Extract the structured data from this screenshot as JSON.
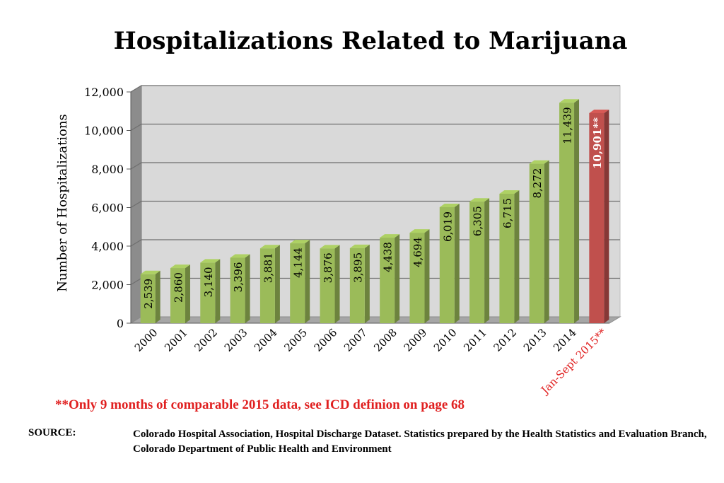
{
  "chart_data": {
    "type": "bar",
    "title": "Hospitalizations Related to Marijuana",
    "ylabel": "Number of Hospitalizations",
    "xlabel": "",
    "ylim": [
      0,
      12000
    ],
    "yticks": [
      0,
      2000,
      4000,
      6000,
      8000,
      10000,
      12000
    ],
    "ytick_labels": [
      "0",
      "2,000",
      "4,000",
      "6,000",
      "8,000",
      "10,000",
      "12,000"
    ],
    "grid": true,
    "categories": [
      "2000",
      "2001",
      "2002",
      "2003",
      "2004",
      "2005",
      "2006",
      "2007",
      "2008",
      "2009",
      "2010",
      "2011",
      "2012",
      "2013",
      "2014",
      "Jan-Sept 2015**"
    ],
    "values": [
      2539,
      2860,
      3140,
      3396,
      3881,
      4144,
      3876,
      3895,
      4438,
      4694,
      6019,
      6305,
      6715,
      8272,
      11439,
      10901
    ],
    "value_labels": [
      "2,539",
      "2,860",
      "3,140",
      "3,396",
      "3,881",
      "4,144",
      "3,876",
      "3,895",
      "4,438",
      "4,694",
      "6,019",
      "6,305",
      "6,715",
      "8,272",
      "11,439",
      "10,901**"
    ],
    "highlight_index": 15,
    "colors": {
      "bar": "#9bbb59",
      "bar_highlight": "#c0504d",
      "highlight_text": "#e02020",
      "plot_back": "#d9d9d9"
    }
  },
  "footnote": "**Only 9 months of comparable 2015 data, see ICD definion on page 68",
  "source": {
    "label": "SOURCE:",
    "text": "Colorado Hospital Association, Hospital Discharge Dataset. Statistics prepared by the Health Statistics and Evaluation Branch, Colorado Department of Public Health and Environment"
  }
}
